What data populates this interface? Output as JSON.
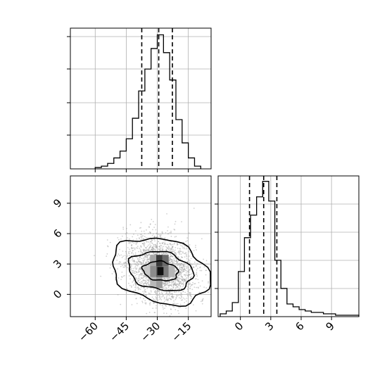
{
  "chart_data": {
    "type": "corner",
    "parameters": [
      {
        "name": "",
        "label": ""
      },
      {
        "name": "",
        "label": ""
      }
    ],
    "hist_x": {
      "type": "histogram",
      "range": [
        -72,
        -4
      ],
      "bins": [
        {
          "x0": -60,
          "x1": -57,
          "count": 0.01
        },
        {
          "x0": -57,
          "x1": -54,
          "count": 0.02
        },
        {
          "x0": -54,
          "x1": -51,
          "count": 0.04
        },
        {
          "x0": -51,
          "x1": -48,
          "count": 0.08
        },
        {
          "x0": -48,
          "x1": -45,
          "count": 0.13
        },
        {
          "x0": -45,
          "x1": -42,
          "count": 0.22
        },
        {
          "x0": -42,
          "x1": -39,
          "count": 0.37
        },
        {
          "x0": -39,
          "x1": -36,
          "count": 0.57
        },
        {
          "x0": -36,
          "x1": -33,
          "count": 0.73
        },
        {
          "x0": -33,
          "x1": -30,
          "count": 0.88
        },
        {
          "x0": -30,
          "x1": -27,
          "count": 0.98
        },
        {
          "x0": -27,
          "x1": -24,
          "count": 0.85
        },
        {
          "x0": -24,
          "x1": -21,
          "count": 0.65
        },
        {
          "x0": -21,
          "x1": -18,
          "count": 0.36
        },
        {
          "x0": -18,
          "x1": -15,
          "count": 0.19
        },
        {
          "x0": -15,
          "x1": -12,
          "count": 0.08
        },
        {
          "x0": -12,
          "x1": -9,
          "count": 0.02
        }
      ],
      "quantiles": [
        -37.5,
        -29.3,
        -22.7
      ]
    },
    "hist_y": {
      "type": "histogram",
      "range": [
        -2.2,
        11.7
      ],
      "bins": [
        {
          "x0": -2.0,
          "x1": -1.4,
          "count": 0.02
        },
        {
          "x0": -1.4,
          "x1": -0.8,
          "count": 0.04
        },
        {
          "x0": -0.8,
          "x1": -0.2,
          "count": 0.1
        },
        {
          "x0": -0.2,
          "x1": 0.4,
          "count": 0.32
        },
        {
          "x0": 0.4,
          "x1": 1.0,
          "count": 0.56
        },
        {
          "x0": 1.0,
          "x1": 1.6,
          "count": 0.72
        },
        {
          "x0": 1.6,
          "x1": 2.2,
          "count": 0.85
        },
        {
          "x0": 2.2,
          "x1": 2.8,
          "count": 0.96
        },
        {
          "x0": 2.8,
          "x1": 3.4,
          "count": 0.82
        },
        {
          "x0": 3.4,
          "x1": 4.0,
          "count": 0.4
        },
        {
          "x0": 4.0,
          "x1": 4.6,
          "count": 0.2
        },
        {
          "x0": 4.6,
          "x1": 5.2,
          "count": 0.09
        },
        {
          "x0": 5.2,
          "x1": 5.8,
          "count": 0.07
        },
        {
          "x0": 5.8,
          "x1": 6.4,
          "count": 0.05
        },
        {
          "x0": 6.4,
          "x1": 7.0,
          "count": 0.04
        },
        {
          "x0": 7.0,
          "x1": 7.6,
          "count": 0.03
        },
        {
          "x0": 7.6,
          "x1": 8.2,
          "count": 0.03
        },
        {
          "x0": 8.2,
          "x1": 8.8,
          "count": 0.02
        },
        {
          "x0": 8.8,
          "x1": 9.4,
          "count": 0.02
        },
        {
          "x0": 9.4,
          "x1": 10.0,
          "count": 0.01
        },
        {
          "x0": 10.0,
          "x1": 10.6,
          "count": 0.01
        },
        {
          "x0": 10.6,
          "x1": 11.2,
          "count": 0.01
        },
        {
          "x0": 11.2,
          "x1": 11.7,
          "count": 0.01
        }
      ],
      "quantiles": [
        0.9,
        2.3,
        3.6
      ]
    },
    "scatter_2d": {
      "type": "scatter",
      "xlim": [
        -72,
        -4
      ],
      "ylim": [
        -2.2,
        11.7
      ],
      "center": [
        -28.5,
        2.3
      ],
      "contours": [
        {
          "level": 1,
          "rx": 8.5,
          "ry": 0.95
        },
        {
          "level": 2,
          "rx": 15.5,
          "ry": 1.9
        },
        {
          "level": 3,
          "rx": 23.5,
          "ry": 3.2
        }
      ]
    },
    "x_ticks": [
      "−60",
      "−45",
      "−30",
      "−15"
    ],
    "x_tick_values": [
      -60,
      -45,
      -30,
      -15
    ],
    "y_ticks": [
      "0",
      "3",
      "6",
      "9"
    ],
    "y_tick_values": [
      0,
      3,
      6,
      9
    ],
    "grid": true,
    "colors": {
      "line": "#000000",
      "points": "#9a9a9a",
      "grid": "#b0b0b0"
    }
  }
}
